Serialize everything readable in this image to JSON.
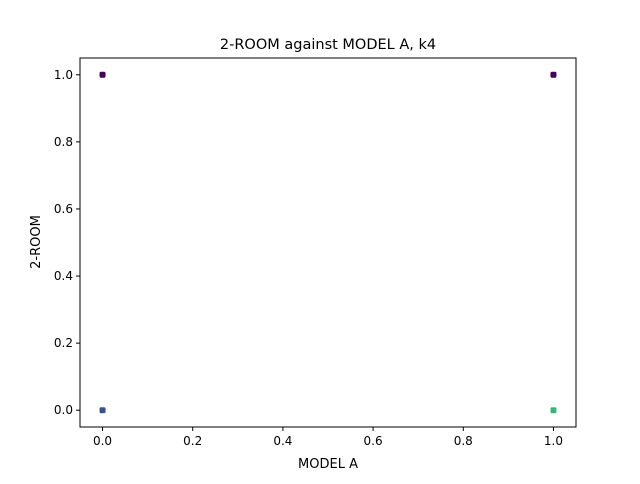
{
  "chart_data": {
    "type": "scatter",
    "title": "2-ROOM against MODEL A, k4",
    "xlabel": "MODEL A",
    "ylabel": "2-ROOM",
    "xlim": [
      -0.05,
      1.05
    ],
    "ylim": [
      -0.05,
      1.05
    ],
    "xticks": [
      "0.0",
      "0.2",
      "0.4",
      "0.6",
      "0.8",
      "1.0"
    ],
    "yticks": [
      "0.0",
      "0.2",
      "0.4",
      "0.6",
      "0.8",
      "1.0"
    ],
    "xtick_values": [
      0,
      0.2,
      0.4,
      0.6,
      0.8,
      1.0
    ],
    "ytick_values": [
      0,
      0.2,
      0.4,
      0.6,
      0.8,
      1.0
    ],
    "grid": false,
    "legend": "none",
    "points": [
      {
        "x": 0,
        "y": 1,
        "color": "#440154"
      },
      {
        "x": 1,
        "y": 1,
        "color": "#440154"
      },
      {
        "x": 0,
        "y": 0,
        "color": "#3b528b"
      },
      {
        "x": 1,
        "y": 0,
        "color": "#35b779"
      }
    ]
  }
}
